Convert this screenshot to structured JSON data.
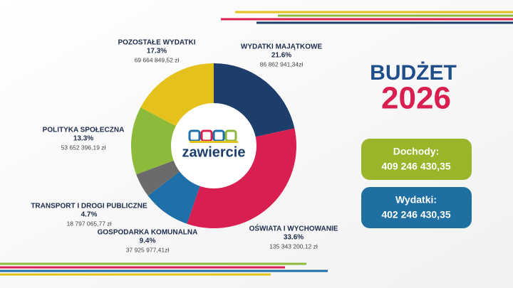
{
  "chart_data": {
    "type": "donut",
    "categories": [
      "WYDATKI MAJĄTKOWE",
      "OŚWIATA I WYCHOWANIE",
      "GOSPODARKA KOMUNALNA",
      "TRANSPORT I DROGI PUBLICZNE",
      "POLITYKA SPOŁECZNA",
      "POZOSTAŁE WYDATKI"
    ],
    "values": [
      21.6,
      33.6,
      9.4,
      4.7,
      13.3,
      17.3
    ],
    "value_labels": [
      "21.6%",
      "33.6%",
      "9.4%",
      "4.7%",
      "13.3%",
      "17.3%"
    ],
    "amounts": [
      "86 862 941,34zł",
      "135 343 200,12 zł",
      "37 925 977,41zł",
      "18 797 065,77 zł",
      "53 652 396,19 zł",
      "69 664 849,52 zł"
    ],
    "colors": [
      "#1d3d6b",
      "#d81f4f",
      "#1f6fa9",
      "#6b6b6b",
      "#8dba3b",
      "#e4c21b"
    ],
    "center_label": "zawiercie"
  },
  "heading": {
    "line1": "BUDŻET",
    "line2": "2026"
  },
  "boxes": [
    {
      "label": "Dochody:",
      "amount": "409 246 430,35",
      "color": "#9bb52b"
    },
    {
      "label": "Wydatki:",
      "amount": "402 246 430,35",
      "color": "#1f6fa0"
    }
  ]
}
